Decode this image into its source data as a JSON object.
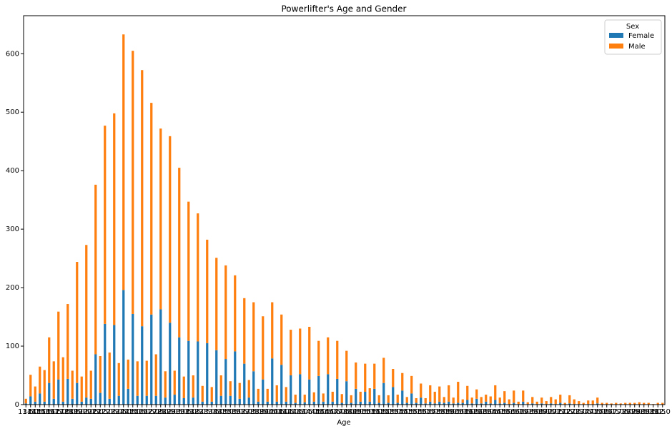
{
  "chart_data": {
    "type": "stacked_bar",
    "title": "Powerlifter's Age and Gender",
    "xlabel": "Age",
    "categories": [
      "13.5",
      "14.0",
      "14.5",
      "15.0",
      "15.5",
      "16.0",
      "16.5",
      "17.0",
      "17.5",
      "18.0",
      "18.5",
      "19.0",
      "19.5",
      "20.0",
      "20.5",
      "21.0",
      "21.5",
      "22.0",
      "22.5",
      "23.0",
      "23.5",
      "24.0",
      "24.5",
      "25.0",
      "25.5",
      "26.0",
      "26.5",
      "27.0",
      "27.5",
      "28.0",
      "28.5",
      "29.0",
      "29.5",
      "30.0",
      "30.5",
      "31.0",
      "31.5",
      "32.0",
      "32.5",
      "33.0",
      "33.5",
      "34.0",
      "34.5",
      "35.0",
      "35.5",
      "36.0",
      "36.5",
      "37.0",
      "37.5",
      "38.0",
      "38.5",
      "39.0",
      "39.5",
      "40.0",
      "40.5",
      "41.0",
      "41.5",
      "42.0",
      "42.5",
      "43.0",
      "43.5",
      "44.0",
      "44.5",
      "45.0",
      "45.5",
      "46.0",
      "46.5",
      "47.0",
      "47.5",
      "48.0",
      "48.5",
      "49.0",
      "49.5",
      "50.0",
      "50.5",
      "51.0",
      "51.5",
      "52.0",
      "52.5",
      "53.0",
      "53.5",
      "54.0",
      "54.5",
      "55.0",
      "55.5",
      "56.0",
      "56.5",
      "57.0",
      "57.5",
      "58.0",
      "58.5",
      "59.0",
      "59.5",
      "60.0",
      "60.5",
      "61.0",
      "61.5",
      "62.0",
      "62.5",
      "63.0",
      "63.5",
      "64.0",
      "64.5",
      "65.0",
      "65.5",
      "66.0",
      "66.5",
      "67.0",
      "67.5",
      "68.0",
      "68.5",
      "69.0",
      "69.5",
      "70.0",
      "70.5",
      "71.0",
      "71.5",
      "72.0",
      "72.5",
      "73.0",
      "73.5",
      "74.0",
      "74.5",
      "75.0",
      "75.5",
      "76.0",
      "76.5",
      "77.0",
      "77.5",
      "78.0",
      "78.5",
      "79.0",
      "79.5",
      "80.0",
      "80.5",
      "81.0",
      "81.5",
      "82.0"
    ],
    "series": [
      {
        "name": "Female",
        "color": "#1f77b4",
        "values": [
          2,
          14,
          5,
          19,
          5,
          37,
          10,
          43,
          5,
          44,
          10,
          37,
          5,
          12,
          10,
          86,
          20,
          138,
          10,
          136,
          15,
          196,
          27,
          155,
          15,
          134,
          15,
          154,
          15,
          163,
          12,
          140,
          17,
          115,
          11,
          109,
          12,
          108,
          5,
          105,
          5,
          93,
          15,
          78,
          15,
          91,
          10,
          70,
          12,
          57,
          5,
          43,
          5,
          79,
          5,
          68,
          5,
          50,
          3,
          52,
          4,
          43,
          5,
          49,
          5,
          52,
          5,
          44,
          3,
          40,
          3,
          27,
          5,
          22,
          5,
          27,
          3,
          37,
          3,
          30,
          3,
          24,
          3,
          19,
          3,
          12,
          2,
          5,
          2,
          5,
          3,
          5,
          2,
          3,
          3,
          8,
          2,
          10,
          2,
          5,
          2,
          8,
          2,
          3,
          1,
          3,
          1,
          5,
          1,
          2,
          1,
          2,
          1,
          2,
          1,
          3,
          0,
          2,
          1,
          1,
          0,
          1,
          0,
          2,
          0,
          0,
          0,
          0,
          0,
          0,
          0,
          0,
          0,
          0,
          0,
          0,
          0,
          0
        ]
      },
      {
        "name": "Male",
        "color": "#ff7f0e",
        "values": [
          8,
          37,
          26,
          46,
          54,
          78,
          64,
          116,
          76,
          128,
          48,
          207,
          43,
          261,
          48,
          290,
          63,
          339,
          79,
          362,
          56,
          437,
          50,
          450,
          59,
          438,
          60,
          362,
          71,
          309,
          45,
          319,
          41,
          290,
          37,
          238,
          38,
          219,
          27,
          177,
          25,
          158,
          35,
          160,
          25,
          130,
          27,
          112,
          30,
          118,
          22,
          108,
          22,
          96,
          28,
          86,
          25,
          78,
          14,
          78,
          13,
          90,
          16,
          60,
          14,
          63,
          17,
          65,
          15,
          52,
          13,
          45,
          17,
          48,
          23,
          43,
          13,
          43,
          13,
          31,
          14,
          30,
          10,
          30,
          8,
          24,
          9,
          28,
          20,
          26,
          10,
          28,
          10,
          36,
          6,
          24,
          10,
          16,
          11,
          12,
          12,
          25,
          10,
          20,
          8,
          21,
          4,
          19,
          3,
          11,
          4,
          10,
          5,
          11,
          8,
          14,
          3,
          14,
          8,
          5,
          3,
          6,
          7,
          10,
          3,
          3,
          2,
          3,
          2,
          3,
          3,
          3,
          4,
          3,
          3,
          1,
          3,
          3
        ]
      }
    ],
    "ylim": [
      0,
      665
    ],
    "yticks": [
      0,
      100,
      200,
      300,
      400,
      500,
      600
    ],
    "legend": {
      "title": "Sex",
      "loc": "upper right"
    }
  }
}
